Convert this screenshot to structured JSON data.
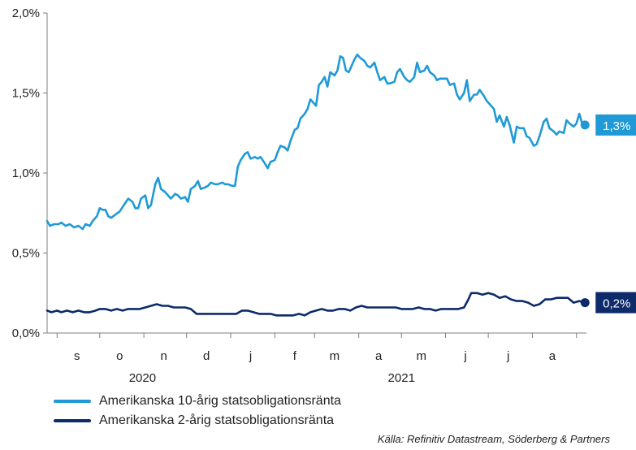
{
  "chart_data": {
    "type": "line",
    "title": "",
    "xlabel": "",
    "ylabel": "",
    "ylim": [
      0.0,
      2.0
    ],
    "yticks": [
      0.0,
      0.5,
      1.0,
      1.5,
      2.0
    ],
    "ytick_labels": [
      "0,0%",
      "0,5%",
      "1,0%",
      "1,5%",
      "2,0%"
    ],
    "xlim": [
      "2020-08-25",
      "2021-09-08"
    ],
    "month_ticks": [
      {
        "label": "s",
        "date": "2020-09-15"
      },
      {
        "label": "o",
        "date": "2020-10-15"
      },
      {
        "label": "n",
        "date": "2020-11-15"
      },
      {
        "label": "d",
        "date": "2020-12-15"
      },
      {
        "label": "j",
        "date": "2021-01-15"
      },
      {
        "label": "f",
        "date": "2021-02-15"
      },
      {
        "label": "m",
        "date": "2021-03-15"
      },
      {
        "label": "a",
        "date": "2021-04-15"
      },
      {
        "label": "m",
        "date": "2021-05-15"
      },
      {
        "label": "j",
        "date": "2021-06-15"
      },
      {
        "label": "j",
        "date": "2021-07-15"
      },
      {
        "label": "a",
        "date": "2021-08-15"
      }
    ],
    "month_separators": [
      "2020-09-01",
      "2020-10-01",
      "2020-11-01",
      "2020-12-01",
      "2021-01-01",
      "2021-02-01",
      "2021-03-01",
      "2021-04-01",
      "2021-05-01",
      "2021-06-01",
      "2021-07-01",
      "2021-08-01",
      "2021-09-01"
    ],
    "year_labels": [
      {
        "label": "2020",
        "date": "2020-10-31"
      },
      {
        "label": "2021",
        "date": "2021-05-01"
      }
    ],
    "grid": false,
    "legend_position": "bottom-left",
    "series": [
      {
        "name": "Amerikanska 10-årig statsobligationsränta",
        "color": "#1f9ad6",
        "end_label": "1,3%",
        "points": [
          [
            "2020-08-25",
            0.7
          ],
          [
            "2020-08-27",
            0.67
          ],
          [
            "2020-08-30",
            0.68
          ],
          [
            "2020-09-02",
            0.68
          ],
          [
            "2020-09-04",
            0.69
          ],
          [
            "2020-09-07",
            0.67
          ],
          [
            "2020-09-10",
            0.68
          ],
          [
            "2020-09-13",
            0.66
          ],
          [
            "2020-09-16",
            0.67
          ],
          [
            "2020-09-19",
            0.65
          ],
          [
            "2020-09-21",
            0.68
          ],
          [
            "2020-09-24",
            0.67
          ],
          [
            "2020-09-26",
            0.7
          ],
          [
            "2020-09-29",
            0.73
          ],
          [
            "2020-10-01",
            0.78
          ],
          [
            "2020-10-03",
            0.77
          ],
          [
            "2020-10-05",
            0.77
          ],
          [
            "2020-10-07",
            0.73
          ],
          [
            "2020-10-09",
            0.72
          ],
          [
            "2020-10-12",
            0.74
          ],
          [
            "2020-10-15",
            0.76
          ],
          [
            "2020-10-18",
            0.8
          ],
          [
            "2020-10-21",
            0.84
          ],
          [
            "2020-10-24",
            0.82
          ],
          [
            "2020-10-26",
            0.78
          ],
          [
            "2020-10-28",
            0.78
          ],
          [
            "2020-10-30",
            0.84
          ],
          [
            "2020-11-02",
            0.86
          ],
          [
            "2020-11-04",
            0.78
          ],
          [
            "2020-11-06",
            0.8
          ],
          [
            "2020-11-09",
            0.93
          ],
          [
            "2020-11-11",
            0.97
          ],
          [
            "2020-11-13",
            0.9
          ],
          [
            "2020-11-16",
            0.88
          ],
          [
            "2020-11-18",
            0.86
          ],
          [
            "2020-11-20",
            0.84
          ],
          [
            "2020-11-23",
            0.87
          ],
          [
            "2020-11-25",
            0.86
          ],
          [
            "2020-11-27",
            0.84
          ],
          [
            "2020-11-30",
            0.85
          ],
          [
            "2020-12-02",
            0.82
          ],
          [
            "2020-12-04",
            0.9
          ],
          [
            "2020-12-07",
            0.92
          ],
          [
            "2020-12-09",
            0.95
          ],
          [
            "2020-12-11",
            0.9
          ],
          [
            "2020-12-14",
            0.91
          ],
          [
            "2020-12-16",
            0.92
          ],
          [
            "2020-12-18",
            0.94
          ],
          [
            "2020-12-21",
            0.93
          ],
          [
            "2020-12-23",
            0.93
          ],
          [
            "2020-12-26",
            0.94
          ],
          [
            "2020-12-28",
            0.93
          ],
          [
            "2020-12-30",
            0.93
          ],
          [
            "2021-01-02",
            0.92
          ],
          [
            "2021-01-04",
            0.92
          ],
          [
            "2021-01-06",
            1.04
          ],
          [
            "2021-01-08",
            1.08
          ],
          [
            "2021-01-11",
            1.12
          ],
          [
            "2021-01-13",
            1.13
          ],
          [
            "2021-01-15",
            1.09
          ],
          [
            "2021-01-18",
            1.1
          ],
          [
            "2021-01-20",
            1.09
          ],
          [
            "2021-01-22",
            1.1
          ],
          [
            "2021-01-25",
            1.06
          ],
          [
            "2021-01-27",
            1.03
          ],
          [
            "2021-01-29",
            1.07
          ],
          [
            "2021-02-01",
            1.08
          ],
          [
            "2021-02-03",
            1.13
          ],
          [
            "2021-02-05",
            1.17
          ],
          [
            "2021-02-08",
            1.16
          ],
          [
            "2021-02-10",
            1.14
          ],
          [
            "2021-02-12",
            1.2
          ],
          [
            "2021-02-15",
            1.27
          ],
          [
            "2021-02-17",
            1.28
          ],
          [
            "2021-02-19",
            1.34
          ],
          [
            "2021-02-22",
            1.37
          ],
          [
            "2021-02-24",
            1.4
          ],
          [
            "2021-02-26",
            1.46
          ],
          [
            "2021-02-28",
            1.44
          ],
          [
            "2021-03-02",
            1.42
          ],
          [
            "2021-03-04",
            1.55
          ],
          [
            "2021-03-06",
            1.57
          ],
          [
            "2021-03-08",
            1.6
          ],
          [
            "2021-03-10",
            1.54
          ],
          [
            "2021-03-12",
            1.63
          ],
          [
            "2021-03-15",
            1.61
          ],
          [
            "2021-03-17",
            1.64
          ],
          [
            "2021-03-19",
            1.73
          ],
          [
            "2021-03-21",
            1.72
          ],
          [
            "2021-03-23",
            1.64
          ],
          [
            "2021-03-25",
            1.63
          ],
          [
            "2021-03-27",
            1.67
          ],
          [
            "2021-03-29",
            1.71
          ],
          [
            "2021-03-31",
            1.74
          ],
          [
            "2021-04-02",
            1.72
          ],
          [
            "2021-04-05",
            1.7
          ],
          [
            "2021-04-07",
            1.67
          ],
          [
            "2021-04-09",
            1.66
          ],
          [
            "2021-04-12",
            1.69
          ],
          [
            "2021-04-14",
            1.63
          ],
          [
            "2021-04-16",
            1.58
          ],
          [
            "2021-04-19",
            1.6
          ],
          [
            "2021-04-21",
            1.56
          ],
          [
            "2021-04-23",
            1.56
          ],
          [
            "2021-04-26",
            1.57
          ],
          [
            "2021-04-28",
            1.63
          ],
          [
            "2021-04-30",
            1.65
          ],
          [
            "2021-05-03",
            1.6
          ],
          [
            "2021-05-05",
            1.58
          ],
          [
            "2021-05-07",
            1.57
          ],
          [
            "2021-05-10",
            1.6
          ],
          [
            "2021-05-12",
            1.69
          ],
          [
            "2021-05-14",
            1.63
          ],
          [
            "2021-05-17",
            1.64
          ],
          [
            "2021-05-19",
            1.67
          ],
          [
            "2021-05-21",
            1.63
          ],
          [
            "2021-05-24",
            1.61
          ],
          [
            "2021-05-26",
            1.58
          ],
          [
            "2021-05-28",
            1.59
          ],
          [
            "2021-05-31",
            1.59
          ],
          [
            "2021-06-02",
            1.59
          ],
          [
            "2021-06-04",
            1.55
          ],
          [
            "2021-06-07",
            1.56
          ],
          [
            "2021-06-09",
            1.49
          ],
          [
            "2021-06-11",
            1.46
          ],
          [
            "2021-06-14",
            1.5
          ],
          [
            "2021-06-16",
            1.58
          ],
          [
            "2021-06-18",
            1.45
          ],
          [
            "2021-06-21",
            1.49
          ],
          [
            "2021-06-23",
            1.49
          ],
          [
            "2021-06-25",
            1.52
          ],
          [
            "2021-06-28",
            1.48
          ],
          [
            "2021-06-30",
            1.45
          ],
          [
            "2021-07-02",
            1.43
          ],
          [
            "2021-07-05",
            1.4
          ],
          [
            "2021-07-07",
            1.32
          ],
          [
            "2021-07-09",
            1.36
          ],
          [
            "2021-07-12",
            1.29
          ],
          [
            "2021-07-14",
            1.35
          ],
          [
            "2021-07-16",
            1.3
          ],
          [
            "2021-07-19",
            1.19
          ],
          [
            "2021-07-21",
            1.29
          ],
          [
            "2021-07-23",
            1.28
          ],
          [
            "2021-07-26",
            1.28
          ],
          [
            "2021-07-28",
            1.23
          ],
          [
            "2021-07-30",
            1.22
          ],
          [
            "2021-08-02",
            1.17
          ],
          [
            "2021-08-04",
            1.18
          ],
          [
            "2021-08-06",
            1.23
          ],
          [
            "2021-08-09",
            1.32
          ],
          [
            "2021-08-11",
            1.34
          ],
          [
            "2021-08-13",
            1.28
          ],
          [
            "2021-08-16",
            1.26
          ],
          [
            "2021-08-18",
            1.24
          ],
          [
            "2021-08-20",
            1.26
          ],
          [
            "2021-08-23",
            1.25
          ],
          [
            "2021-08-25",
            1.33
          ],
          [
            "2021-08-27",
            1.31
          ],
          [
            "2021-08-30",
            1.29
          ],
          [
            "2021-09-01",
            1.31
          ],
          [
            "2021-09-03",
            1.37
          ],
          [
            "2021-09-05",
            1.31
          ],
          [
            "2021-09-07",
            1.3
          ]
        ]
      },
      {
        "name": "Amerikanska 2-årig statsobligationsränta",
        "color": "#0d2a6b",
        "end_label": "0,2%",
        "points": [
          [
            "2020-08-25",
            0.14
          ],
          [
            "2020-08-28",
            0.13
          ],
          [
            "2020-09-01",
            0.14
          ],
          [
            "2020-09-04",
            0.13
          ],
          [
            "2020-09-08",
            0.14
          ],
          [
            "2020-09-12",
            0.13
          ],
          [
            "2020-09-16",
            0.14
          ],
          [
            "2020-09-20",
            0.13
          ],
          [
            "2020-09-24",
            0.13
          ],
          [
            "2020-09-28",
            0.14
          ],
          [
            "2020-10-01",
            0.15
          ],
          [
            "2020-10-05",
            0.15
          ],
          [
            "2020-10-09",
            0.14
          ],
          [
            "2020-10-13",
            0.15
          ],
          [
            "2020-10-17",
            0.14
          ],
          [
            "2020-10-21",
            0.15
          ],
          [
            "2020-10-25",
            0.15
          ],
          [
            "2020-10-29",
            0.15
          ],
          [
            "2020-11-02",
            0.16
          ],
          [
            "2020-11-06",
            0.17
          ],
          [
            "2020-11-10",
            0.18
          ],
          [
            "2020-11-14",
            0.17
          ],
          [
            "2020-11-18",
            0.17
          ],
          [
            "2020-11-22",
            0.16
          ],
          [
            "2020-11-26",
            0.16
          ],
          [
            "2020-11-30",
            0.16
          ],
          [
            "2020-12-04",
            0.15
          ],
          [
            "2020-12-08",
            0.12
          ],
          [
            "2020-12-12",
            0.12
          ],
          [
            "2020-12-16",
            0.12
          ],
          [
            "2020-12-20",
            0.12
          ],
          [
            "2020-12-24",
            0.12
          ],
          [
            "2020-12-28",
            0.12
          ],
          [
            "2021-01-01",
            0.12
          ],
          [
            "2021-01-05",
            0.12
          ],
          [
            "2021-01-09",
            0.14
          ],
          [
            "2021-01-13",
            0.14
          ],
          [
            "2021-01-17",
            0.13
          ],
          [
            "2021-01-21",
            0.12
          ],
          [
            "2021-01-25",
            0.12
          ],
          [
            "2021-01-29",
            0.12
          ],
          [
            "2021-02-02",
            0.11
          ],
          [
            "2021-02-06",
            0.11
          ],
          [
            "2021-02-10",
            0.11
          ],
          [
            "2021-02-14",
            0.11
          ],
          [
            "2021-02-18",
            0.12
          ],
          [
            "2021-02-22",
            0.11
          ],
          [
            "2021-02-26",
            0.13
          ],
          [
            "2021-03-02",
            0.14
          ],
          [
            "2021-03-06",
            0.15
          ],
          [
            "2021-03-10",
            0.14
          ],
          [
            "2021-03-14",
            0.14
          ],
          [
            "2021-03-18",
            0.15
          ],
          [
            "2021-03-22",
            0.15
          ],
          [
            "2021-03-26",
            0.14
          ],
          [
            "2021-03-30",
            0.16
          ],
          [
            "2021-04-03",
            0.17
          ],
          [
            "2021-04-07",
            0.16
          ],
          [
            "2021-04-11",
            0.16
          ],
          [
            "2021-04-15",
            0.16
          ],
          [
            "2021-04-19",
            0.16
          ],
          [
            "2021-04-23",
            0.16
          ],
          [
            "2021-04-27",
            0.16
          ],
          [
            "2021-05-01",
            0.15
          ],
          [
            "2021-05-05",
            0.15
          ],
          [
            "2021-05-09",
            0.15
          ],
          [
            "2021-05-13",
            0.16
          ],
          [
            "2021-05-17",
            0.15
          ],
          [
            "2021-05-21",
            0.15
          ],
          [
            "2021-05-25",
            0.14
          ],
          [
            "2021-05-29",
            0.15
          ],
          [
            "2021-06-02",
            0.15
          ],
          [
            "2021-06-06",
            0.15
          ],
          [
            "2021-06-10",
            0.15
          ],
          [
            "2021-06-14",
            0.16
          ],
          [
            "2021-06-17",
            0.21
          ],
          [
            "2021-06-19",
            0.25
          ],
          [
            "2021-06-23",
            0.25
          ],
          [
            "2021-06-27",
            0.24
          ],
          [
            "2021-07-01",
            0.25
          ],
          [
            "2021-07-05",
            0.24
          ],
          [
            "2021-07-09",
            0.22
          ],
          [
            "2021-07-13",
            0.23
          ],
          [
            "2021-07-17",
            0.21
          ],
          [
            "2021-07-21",
            0.2
          ],
          [
            "2021-07-25",
            0.2
          ],
          [
            "2021-07-29",
            0.19
          ],
          [
            "2021-08-02",
            0.17
          ],
          [
            "2021-08-06",
            0.18
          ],
          [
            "2021-08-10",
            0.21
          ],
          [
            "2021-08-14",
            0.21
          ],
          [
            "2021-08-18",
            0.22
          ],
          [
            "2021-08-22",
            0.22
          ],
          [
            "2021-08-26",
            0.22
          ],
          [
            "2021-08-30",
            0.19
          ],
          [
            "2021-09-03",
            0.2
          ],
          [
            "2021-09-07",
            0.19
          ]
        ]
      }
    ]
  },
  "source": "Källa: Refinitiv Datastream, Söderberg & Partners"
}
